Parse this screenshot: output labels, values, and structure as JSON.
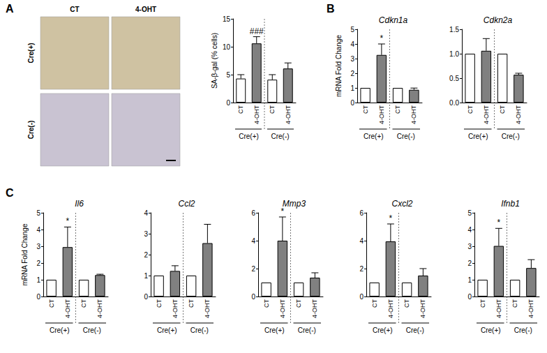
{
  "micrographs": {
    "columns": [
      "CT",
      "4-OHT"
    ],
    "rows": [
      "Cre(+)",
      "Cre(-)"
    ]
  },
  "chart_data": [
    {
      "type": "bar",
      "panel": "A",
      "ylabel": "SA-β-gal (% cells)",
      "categories": [
        "CT",
        "4-OHT",
        "CT",
        "4-OHT"
      ],
      "groups": [
        "Cre(+)",
        "Cre(-)"
      ],
      "values": [
        4.3,
        10.6,
        4.1,
        6.1
      ],
      "errors": [
        0.7,
        1.2,
        0.9,
        1.0
      ],
      "annotations": [
        null,
        "###",
        null,
        null
      ],
      "colors": [
        "#ffffff",
        "#808080",
        "#ffffff",
        "#808080"
      ],
      "ylim": [
        0,
        15
      ],
      "yticks": [
        0,
        5,
        10,
        15
      ],
      "grid": false
    },
    {
      "type": "bar",
      "panel": "B",
      "title": "Cdkn1a",
      "ylabel": "mRNA Fold Change",
      "categories": [
        "CT",
        "4-OHT",
        "CT",
        "4-OHT"
      ],
      "groups": [
        "Cre(+)",
        "Cre(-)"
      ],
      "values": [
        1,
        3.25,
        1,
        0.87
      ],
      "errors": [
        null,
        0.75,
        null,
        0.12
      ],
      "annotations": [
        null,
        "*",
        null,
        null
      ],
      "colors": [
        "#ffffff",
        "#808080",
        "#ffffff",
        "#808080"
      ],
      "ylim": [
        0,
        5
      ],
      "yticks": [
        0,
        1,
        2,
        3,
        4,
        5
      ],
      "grid": false
    },
    {
      "type": "bar",
      "title": "Cdkn2a",
      "categories": [
        "CT",
        "4-OHT",
        "CT",
        "4-OHT"
      ],
      "groups": [
        "Cre(+)",
        "Cre(-)"
      ],
      "values": [
        1,
        1.06,
        1,
        0.57
      ],
      "errors": [
        null,
        0.25,
        null,
        0.03
      ],
      "annotations": [
        null,
        null,
        null,
        null
      ],
      "colors": [
        "#ffffff",
        "#808080",
        "#ffffff",
        "#808080"
      ],
      "ylim": [
        0,
        1.5
      ],
      "yticks": [
        {
          "value": 0,
          "label": "0.0"
        },
        0.5,
        {
          "value": 1,
          "label": "1.0"
        },
        1.5
      ],
      "grid": false
    },
    {
      "type": "bar",
      "panel": "C",
      "title": "Il6",
      "ylabel": "mRNA Fold Change",
      "categories": [
        "CT",
        "4-OHT",
        "CT",
        "4-OHT"
      ],
      "groups": [
        "Cre(+)",
        "Cre(-)"
      ],
      "values": [
        1,
        2.95,
        1,
        1.28
      ],
      "errors": [
        null,
        1.2,
        null,
        0.05
      ],
      "annotations": [
        null,
        "*",
        null,
        null
      ],
      "colors": [
        "#ffffff",
        "#808080",
        "#ffffff",
        "#808080"
      ],
      "ylim": [
        0,
        5
      ],
      "yticks": [
        0,
        1,
        2,
        3,
        4,
        5
      ],
      "grid": false
    },
    {
      "type": "bar",
      "title": "Ccl2",
      "categories": [
        "CT",
        "4-OHT",
        "CT",
        "4-OHT"
      ],
      "groups": [
        "Cre(+)",
        "Cre(-)"
      ],
      "values": [
        1,
        1.22,
        1,
        2.55
      ],
      "errors": [
        null,
        0.25,
        null,
        0.9
      ],
      "annotations": [
        null,
        null,
        null,
        null
      ],
      "colors": [
        "#ffffff",
        "#808080",
        "#ffffff",
        "#808080"
      ],
      "ylim": [
        0,
        4
      ],
      "yticks": [
        0,
        1,
        2,
        3,
        4
      ],
      "grid": false
    },
    {
      "type": "bar",
      "title": "Mmp3",
      "categories": [
        "CT",
        "4-OHT",
        "CT",
        "4-OHT"
      ],
      "groups": [
        "Cre(+)",
        "Cre(-)"
      ],
      "values": [
        1,
        4.0,
        1,
        1.35
      ],
      "errors": [
        null,
        1.7,
        null,
        0.35
      ],
      "annotations": [
        null,
        "*",
        null,
        null
      ],
      "colors": [
        "#ffffff",
        "#808080",
        "#ffffff",
        "#808080"
      ],
      "ylim": [
        0,
        6
      ],
      "yticks": [
        0,
        2,
        4,
        6
      ],
      "grid": false
    },
    {
      "type": "bar",
      "title": "Cxcl2",
      "categories": [
        "CT",
        "4-OHT",
        "CT",
        "4-OHT"
      ],
      "groups": [
        "Cre(+)",
        "Cre(-)"
      ],
      "values": [
        1,
        3.95,
        1,
        1.5
      ],
      "errors": [
        null,
        1.25,
        null,
        0.5
      ],
      "annotations": [
        null,
        "*",
        null,
        null
      ],
      "colors": [
        "#ffffff",
        "#808080",
        "#ffffff",
        "#808080"
      ],
      "ylim": [
        0,
        6
      ],
      "yticks": [
        0,
        2,
        4,
        6
      ],
      "grid": false
    },
    {
      "type": "bar",
      "title": "Ifnb1",
      "categories": [
        "CT",
        "4-OHT",
        "CT",
        "4-OHT"
      ],
      "groups": [
        "Cre(+)",
        "Cre(-)"
      ],
      "values": [
        1,
        3.02,
        1,
        1.7
      ],
      "errors": [
        null,
        1.05,
        null,
        0.5
      ],
      "annotations": [
        null,
        "*",
        null,
        null
      ],
      "colors": [
        "#ffffff",
        "#808080",
        "#ffffff",
        "#808080"
      ],
      "ylim": [
        0,
        5
      ],
      "yticks": [
        0,
        1,
        2,
        3,
        4,
        5
      ],
      "grid": false
    }
  ]
}
